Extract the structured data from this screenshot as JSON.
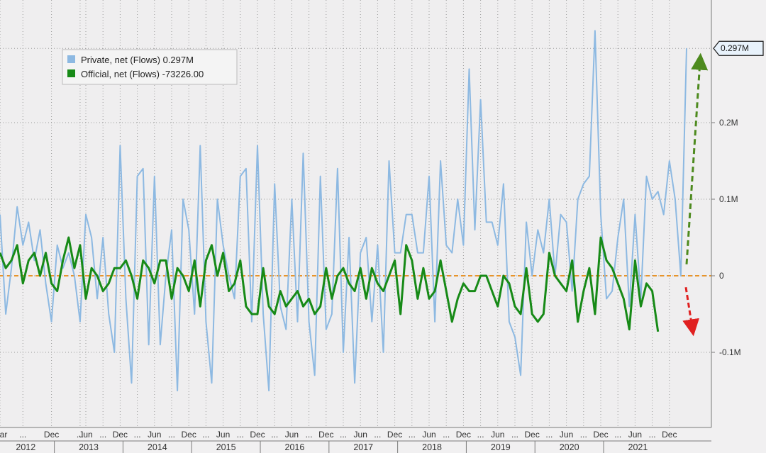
{
  "chart_data": {
    "type": "line",
    "grid": true,
    "legend_position": "top-left",
    "y_axis_position": "right",
    "ylim": [
      -0.2,
      0.32
    ],
    "y_ticks": [
      {
        "value": 0.2,
        "label": "0.2M"
      },
      {
        "value": 0.1,
        "label": "0.1M"
      },
      {
        "value": 0,
        "label": "0"
      },
      {
        "value": -0.1,
        "label": "-0.1M"
      }
    ],
    "x_tick_labels": [
      {
        "index": 0,
        "label": "Mar"
      },
      {
        "index": 4,
        "label": "..."
      },
      {
        "index": 9,
        "label": "Dec"
      },
      {
        "index": 14,
        "label": "..."
      },
      {
        "index": 15,
        "label": "Jun"
      },
      {
        "index": 18,
        "label": "..."
      },
      {
        "index": 21,
        "label": "Dec"
      },
      {
        "index": 24,
        "label": "..."
      },
      {
        "index": 27,
        "label": "Jun"
      },
      {
        "index": 30,
        "label": "..."
      },
      {
        "index": 33,
        "label": "Dec"
      },
      {
        "index": 36,
        "label": "..."
      },
      {
        "index": 39,
        "label": "Jun"
      },
      {
        "index": 42,
        "label": "..."
      },
      {
        "index": 45,
        "label": "Dec"
      },
      {
        "index": 48,
        "label": "..."
      },
      {
        "index": 51,
        "label": "Jun"
      },
      {
        "index": 54,
        "label": "..."
      },
      {
        "index": 57,
        "label": "Dec"
      },
      {
        "index": 60,
        "label": "..."
      },
      {
        "index": 63,
        "label": "Jun"
      },
      {
        "index": 66,
        "label": "..."
      },
      {
        "index": 69,
        "label": "Dec"
      },
      {
        "index": 72,
        "label": "..."
      },
      {
        "index": 75,
        "label": "Jun"
      },
      {
        "index": 78,
        "label": "..."
      },
      {
        "index": 81,
        "label": "Dec"
      },
      {
        "index": 84,
        "label": "..."
      },
      {
        "index": 87,
        "label": "Jun"
      },
      {
        "index": 90,
        "label": "..."
      },
      {
        "index": 93,
        "label": "Dec"
      },
      {
        "index": 96,
        "label": "..."
      },
      {
        "index": 99,
        "label": "Jun"
      },
      {
        "index": 102,
        "label": "..."
      },
      {
        "index": 105,
        "label": "Dec"
      },
      {
        "index": 108,
        "label": "..."
      },
      {
        "index": 111,
        "label": "Jun"
      },
      {
        "index": 114,
        "label": "..."
      },
      {
        "index": 117,
        "label": "Dec"
      }
    ],
    "year_labels": [
      {
        "center": 4.5,
        "label": "2012"
      },
      {
        "center": 15.5,
        "label": "2013"
      },
      {
        "center": 27.5,
        "label": "2014"
      },
      {
        "center": 39.5,
        "label": "2015"
      },
      {
        "center": 51.5,
        "label": "2016"
      },
      {
        "center": 63.5,
        "label": "2017"
      },
      {
        "center": 75.5,
        "label": "2018"
      },
      {
        "center": 87.5,
        "label": "2019"
      },
      {
        "center": 99.5,
        "label": "2020"
      },
      {
        "center": 111.5,
        "label": "2021"
      }
    ],
    "year_boundaries": [
      9.5,
      21.5,
      33.5,
      45.5,
      57.5,
      69.5,
      81.5,
      93.5,
      105.5
    ],
    "series": [
      {
        "name": "Private, net (Flows) 0.297M",
        "color": "#8db9e2",
        "values": [
          0.08,
          -0.05,
          0.01,
          0.09,
          0.04,
          0.07,
          0.02,
          0.06,
          -0.01,
          -0.06,
          0.04,
          0.01,
          0.03,
          0.0,
          -0.06,
          0.08,
          0.05,
          -0.03,
          0.05,
          -0.05,
          -0.1,
          0.17,
          -0.03,
          -0.14,
          0.13,
          0.14,
          -0.09,
          0.13,
          -0.09,
          0.0,
          0.06,
          -0.15,
          0.1,
          0.06,
          -0.05,
          0.17,
          -0.06,
          -0.14,
          0.1,
          0.04,
          0.0,
          -0.03,
          0.13,
          0.14,
          -0.06,
          0.17,
          -0.05,
          -0.15,
          0.12,
          -0.04,
          -0.07,
          0.1,
          -0.06,
          0.16,
          -0.06,
          -0.13,
          0.13,
          -0.07,
          -0.05,
          0.14,
          -0.1,
          0.05,
          -0.14,
          0.03,
          0.05,
          -0.06,
          0.04,
          -0.1,
          0.15,
          0.03,
          0.03,
          0.08,
          0.08,
          0.03,
          0.03,
          0.13,
          -0.06,
          0.15,
          0.04,
          0.03,
          0.1,
          0.04,
          0.27,
          0.06,
          0.23,
          0.07,
          0.07,
          0.04,
          0.12,
          -0.06,
          -0.08,
          -0.13,
          0.07,
          0.0,
          0.06,
          0.03,
          0.1,
          0.0,
          0.08,
          0.07,
          -0.02,
          0.1,
          0.12,
          0.13,
          0.32,
          0.08,
          -0.03,
          -0.02,
          0.05,
          0.1,
          -0.04,
          0.08,
          -0.03,
          0.13,
          0.1,
          0.11,
          0.08,
          0.15,
          0.1,
          0.0,
          0.297
        ]
      },
      {
        "name": "Official, net (Flows) -73226.00",
        "color": "#178a17",
        "values": [
          0.03,
          0.01,
          0.02,
          0.04,
          -0.01,
          0.02,
          0.03,
          0.0,
          0.03,
          -0.01,
          -0.02,
          0.02,
          0.05,
          0.01,
          0.04,
          -0.03,
          0.01,
          0.0,
          -0.02,
          -0.01,
          0.01,
          0.01,
          0.02,
          0.0,
          -0.03,
          0.02,
          0.01,
          -0.01,
          0.02,
          0.02,
          -0.03,
          0.01,
          0.0,
          -0.02,
          0.02,
          -0.04,
          0.02,
          0.04,
          0.0,
          0.03,
          -0.02,
          -0.01,
          0.02,
          -0.04,
          -0.05,
          -0.05,
          0.01,
          -0.04,
          -0.05,
          -0.02,
          -0.04,
          -0.03,
          -0.02,
          -0.04,
          -0.03,
          -0.05,
          -0.04,
          0.01,
          -0.03,
          0.0,
          0.01,
          -0.01,
          -0.02,
          0.01,
          -0.03,
          0.01,
          -0.01,
          -0.02,
          0.0,
          0.02,
          -0.05,
          0.04,
          0.02,
          -0.03,
          0.01,
          -0.03,
          -0.02,
          0.02,
          -0.02,
          -0.06,
          -0.03,
          -0.01,
          -0.02,
          -0.02,
          0.0,
          0.0,
          -0.02,
          -0.04,
          0.0,
          -0.01,
          -0.04,
          -0.05,
          0.01,
          -0.05,
          -0.06,
          -0.05,
          0.03,
          0.0,
          -0.01,
          -0.02,
          0.02,
          -0.06,
          -0.02,
          0.01,
          -0.05,
          0.05,
          0.02,
          0.01,
          -0.01,
          -0.03,
          -0.07,
          0.02,
          -0.04,
          -0.01,
          -0.02,
          -0.073
        ]
      }
    ],
    "value_tags": [
      {
        "text": "0.297M",
        "series": 0
      },
      {
        "text": "-73226.00",
        "series": 1
      }
    ],
    "reference_line": {
      "value": 0,
      "color": "#e8942a",
      "style": "dashed"
    },
    "annotation_arrows": [
      {
        "color": "#4d8a1e",
        "direction": "up",
        "series": 0
      },
      {
        "color": "#e02020",
        "direction": "down",
        "series": 1
      }
    ]
  }
}
